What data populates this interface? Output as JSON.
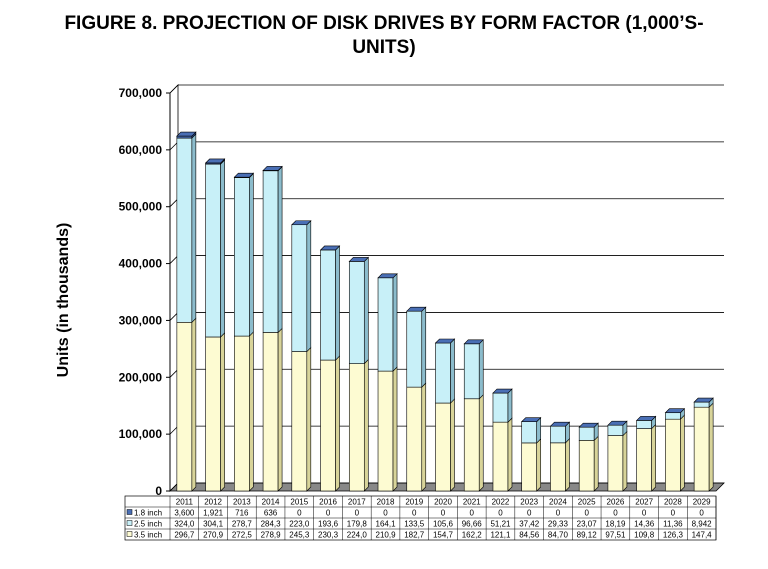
{
  "chart_data": {
    "type": "bar",
    "stacked": true,
    "title": "FIGURE 8.  PROJECTION OF DISK DRIVES BY FORM FACTOR (1,000'S-UNITS)",
    "title_line1": "FIGURE 8.  PROJECTION OF DISK DRIVES BY FORM FACTOR (1,000’S-",
    "title_line2": "UNITS)",
    "ylabel": "Units (in thousands)",
    "ylim": [
      0,
      700000
    ],
    "yticks": [
      "0",
      "100,000",
      "200,000",
      "300,000",
      "400,000",
      "500,000",
      "600,000",
      "700,000"
    ],
    "grid": true,
    "categories": [
      "2011",
      "2012",
      "2013",
      "2014",
      "2015",
      "2016",
      "2017",
      "2018",
      "2019",
      "2020",
      "2021",
      "2022",
      "2023",
      "2024",
      "2025",
      "2026",
      "2027",
      "2028",
      "2029"
    ],
    "series": [
      {
        "name": "1.8 inch",
        "color": "#4a6fb5",
        "values": [
          3600,
          1921,
          716,
          636,
          0,
          0,
          0,
          0,
          0,
          0,
          0,
          0,
          0,
          0,
          0,
          0,
          0,
          0,
          0
        ],
        "labels": [
          "3,600",
          "1,921",
          "716",
          "636",
          "0",
          "0",
          "0",
          "0",
          "0",
          "0",
          "0",
          "0",
          "0",
          "0",
          "0",
          "0",
          "0",
          "0",
          "0"
        ]
      },
      {
        "name": "2.5 inch",
        "color": "#c8f0f8",
        "values": [
          324000,
          304100,
          278700,
          284300,
          223000,
          193600,
          179800,
          164100,
          133500,
          105600,
          96660,
          51210,
          37420,
          29330,
          23070,
          18190,
          14360,
          11360,
          8942
        ],
        "labels": [
          "324,0",
          "304,1",
          "278,7",
          "284,3",
          "223,0",
          "193,6",
          "179,8",
          "164,1",
          "133,5",
          "105,6",
          "96,66",
          "51,21",
          "37,42",
          "29,33",
          "23,07",
          "18,19",
          "14,36",
          "11,36",
          "8,942"
        ]
      },
      {
        "name": "3.5 inch",
        "color": "#fdfbd2",
        "values": [
          296700,
          270900,
          272500,
          278900,
          245300,
          230300,
          224000,
          210900,
          182700,
          154700,
          162200,
          121100,
          84560,
          84700,
          89120,
          97510,
          109800,
          126300,
          147400
        ],
        "labels": [
          "296,7",
          "270,9",
          "272,5",
          "278,9",
          "245,3",
          "230,3",
          "224,0",
          "210,9",
          "182,7",
          "154,7",
          "162,2",
          "121,1",
          "84,56",
          "84,70",
          "89,12",
          "97,51",
          "109,8",
          "126,3",
          "147,4"
        ]
      }
    ]
  }
}
